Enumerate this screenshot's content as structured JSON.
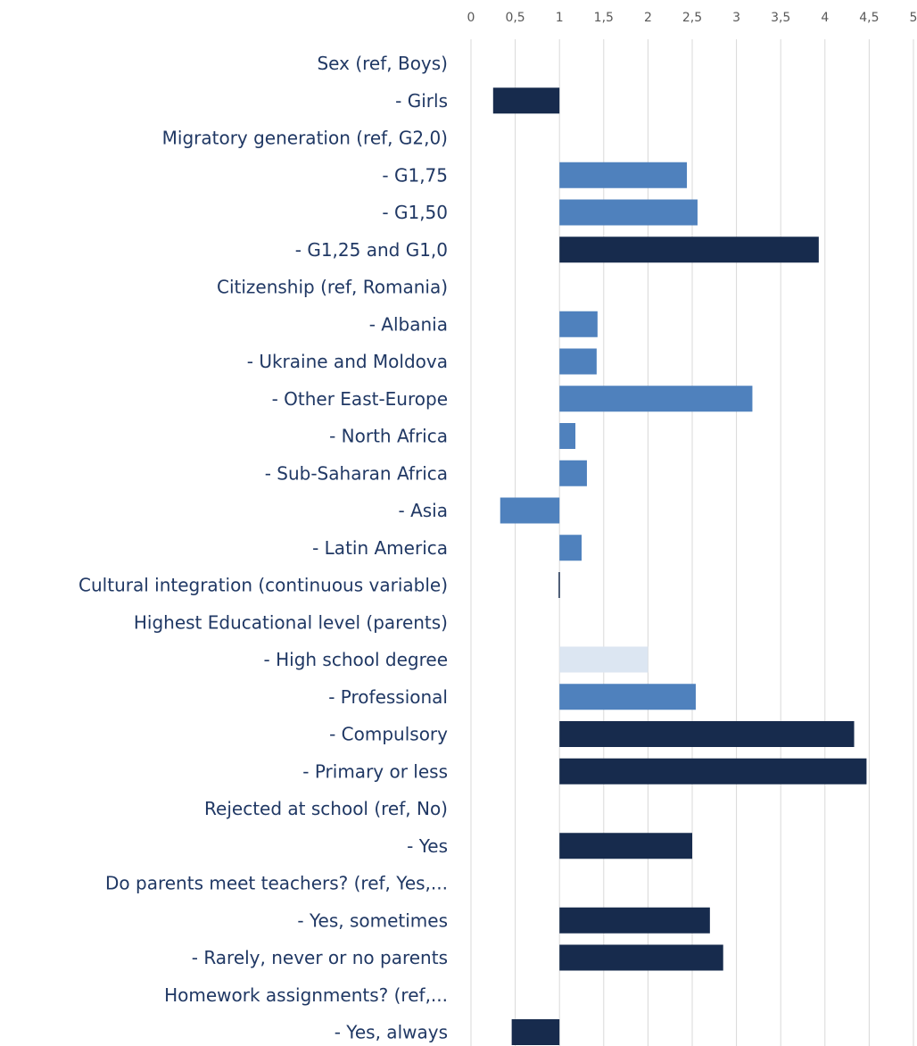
{
  "chart_data": {
    "type": "bar",
    "orientation": "horizontal",
    "title": "",
    "xlabel": "",
    "ylabel": "",
    "xlim": [
      0,
      5
    ],
    "baseline": 1,
    "x_ticks": [
      "0",
      "0,5",
      "1",
      "1,5",
      "2",
      "2,5",
      "3",
      "3,5",
      "4",
      "4,5",
      "5"
    ],
    "grid": true,
    "legend": "none",
    "colors": {
      "dark": "#172b4d",
      "medium": "#4f81bd",
      "light": "#dce6f2"
    },
    "categories": [
      "Sex (ref, Boys)",
      "- Girls",
      "Migratory generation (ref, G2,0)",
      "- G1,75",
      "- G1,50",
      "- G1,25 and G1,0",
      "Citizenship (ref, Romania)",
      "- Albania",
      "- Ukraine and Moldova",
      "- Other East-Europe",
      "- North Africa",
      "- Sub-Saharan Africa",
      "- Asia",
      "- Latin America",
      "Cultural integration (continuous variable)",
      "Highest Educational level (parents)",
      "- High school degree",
      "- Professional",
      "- Compulsory",
      "- Primary or less",
      "Rejected at school (ref, No)",
      "- Yes",
      "Do parents meet teachers? (ref, Yes,...",
      "- Yes, sometimes",
      "- Rarely, never or no parents",
      "Homework assignments? (ref,...",
      "- Yes, always"
    ],
    "values": [
      null,
      0.25,
      null,
      2.44,
      2.56,
      3.93,
      null,
      1.43,
      1.42,
      3.18,
      1.18,
      1.31,
      0.33,
      1.25,
      0.99,
      null,
      2.0,
      2.54,
      4.33,
      4.47,
      null,
      2.5,
      null,
      2.7,
      2.85,
      null,
      0.46
    ],
    "value_colors": [
      "",
      "dark",
      "",
      "medium",
      "medium",
      "dark",
      "",
      "medium",
      "medium",
      "medium",
      "medium",
      "medium",
      "medium",
      "medium",
      "dark",
      "",
      "light",
      "medium",
      "dark",
      "dark",
      "",
      "dark",
      "",
      "dark",
      "dark",
      "",
      "dark"
    ]
  }
}
